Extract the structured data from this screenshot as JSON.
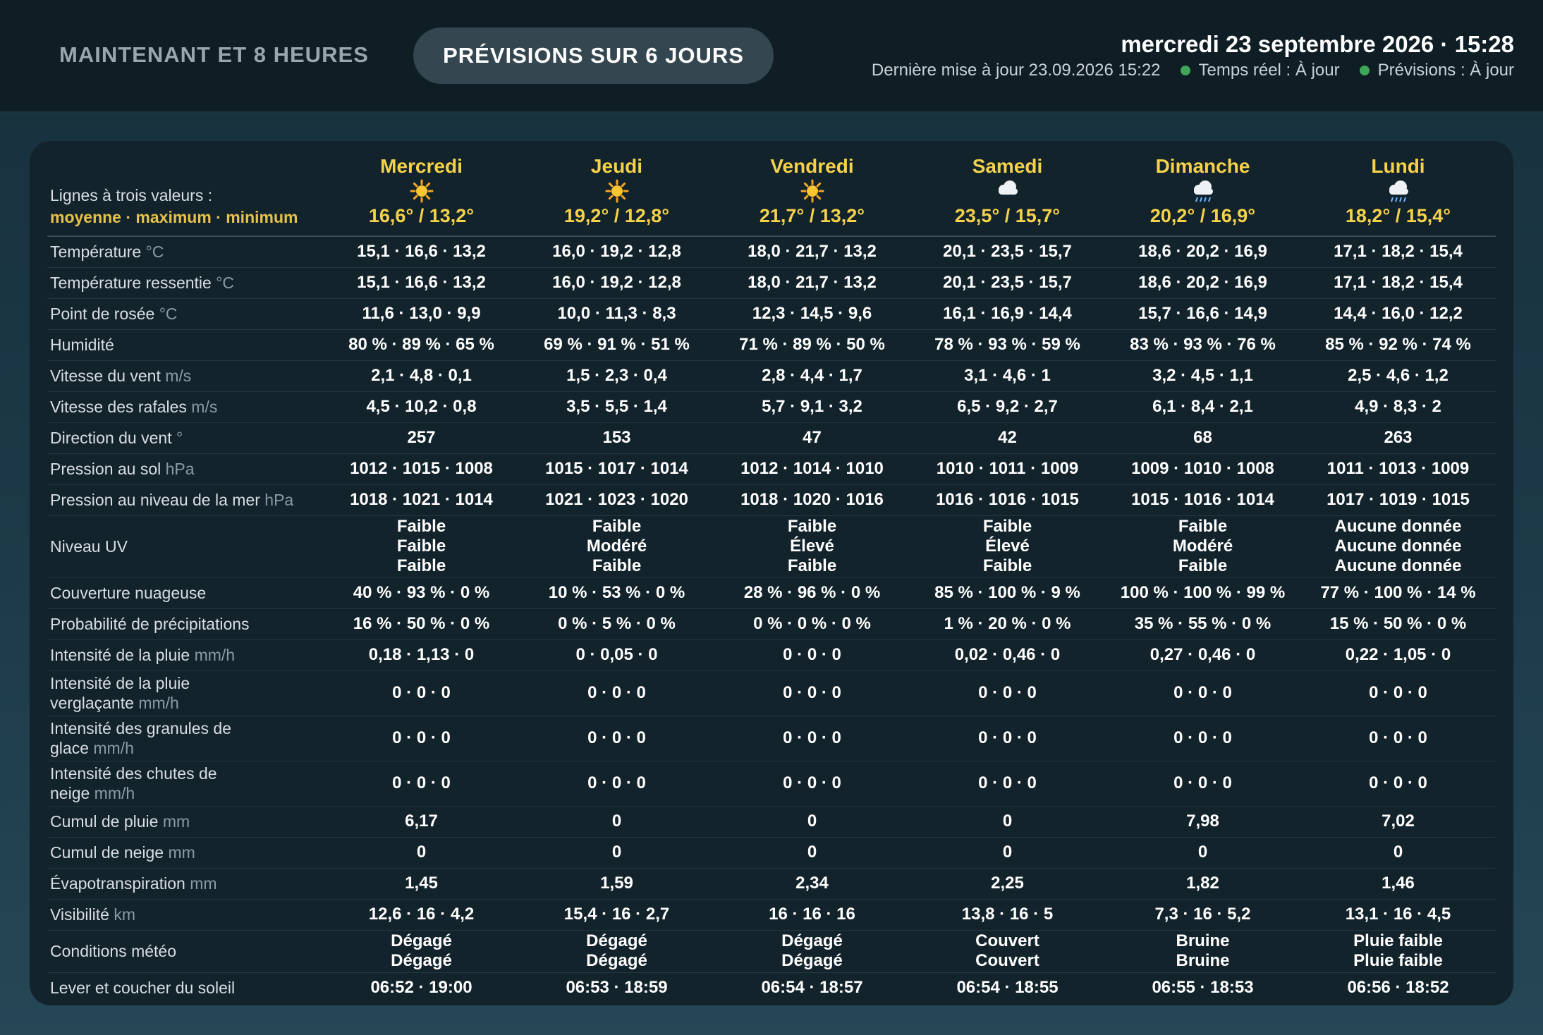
{
  "tabs": [
    "MAINTENANT ET 8 HEURES",
    "PRÉVISIONS SUR 6 JOURS"
  ],
  "header": {
    "datetime": "mercredi 23 septembre 2026 · 15:28",
    "last_update": "Dernière mise à jour 23.09.2026 15:22",
    "status": [
      "Temps réel : À jour",
      "Prévisions : À jour"
    ]
  },
  "table": {
    "legend": [
      "Lignes à trois valeurs :",
      "moyenne · maximum · minimum"
    ],
    "days": [
      {
        "name": "Mercredi",
        "icon": "sun",
        "temps": "16,6° / 13,2°"
      },
      {
        "name": "Jeudi",
        "icon": "sun",
        "temps": "19,2° / 12,8°"
      },
      {
        "name": "Vendredi",
        "icon": "sun",
        "temps": "21,7° / 13,2°"
      },
      {
        "name": "Samedi",
        "icon": "cloud",
        "temps": "23,5° / 15,7°"
      },
      {
        "name": "Dimanche",
        "icon": "rain",
        "temps": "20,2° / 16,9°"
      },
      {
        "name": "Lundi",
        "icon": "rain",
        "temps": "18,2° / 15,4°"
      }
    ],
    "rows": [
      {
        "label": [
          "Température"
        ],
        "unit": "°C",
        "cells": [
          "15,1 · 16,6 · 13,2",
          "16,0 · 19,2 · 12,8",
          "18,0 · 21,7 · 13,2",
          "20,1 · 23,5 · 15,7",
          "18,6 · 20,2 · 16,9",
          "17,1 · 18,2 · 15,4"
        ]
      },
      {
        "label": [
          "Température ressentie"
        ],
        "unit": "°C",
        "cells": [
          "15,1 · 16,6 · 13,2",
          "16,0 · 19,2 · 12,8",
          "18,0 · 21,7 · 13,2",
          "20,1 · 23,5 · 15,7",
          "18,6 · 20,2 · 16,9",
          "17,1 · 18,2 · 15,4"
        ]
      },
      {
        "label": [
          "Point de rosée"
        ],
        "unit": "°C",
        "cells": [
          "11,6 · 13,0 · 9,9",
          "10,0 · 11,3 · 8,3",
          "12,3 · 14,5 · 9,6",
          "16,1 · 16,9 · 14,4",
          "15,7 · 16,6 · 14,9",
          "14,4 · 16,0 · 12,2"
        ]
      },
      {
        "label": [
          "Humidité"
        ],
        "cells": [
          "80 % · 89 % · 65 %",
          "69 % · 91 % · 51 %",
          "71 % · 89 % · 50 %",
          "78 % · 93 % · 59 %",
          "83 % · 93 % · 76 %",
          "85 % · 92 % · 74 %"
        ]
      },
      {
        "label": [
          "Vitesse du vent"
        ],
        "unit": "m/s",
        "cells": [
          "2,1 · 4,8 · 0,1",
          "1,5 · 2,3 · 0,4",
          "2,8 · 4,4 · 1,7",
          "3,1 · 4,6 · 1",
          "3,2 · 4,5 · 1,1",
          "2,5 · 4,6 · 1,2"
        ]
      },
      {
        "label": [
          "Vitesse des rafales"
        ],
        "unit": "m/s",
        "cells": [
          "4,5 · 10,2 · 0,8",
          "3,5 · 5,5 · 1,4",
          "5,7 · 9,1 · 3,2",
          "6,5 · 9,2 · 2,7",
          "6,1 · 8,4 · 2,1",
          "4,9 · 8,3 · 2"
        ]
      },
      {
        "label": [
          "Direction du vent"
        ],
        "unit": "°",
        "cells": [
          "257",
          "153",
          "47",
          "42",
          "68",
          "263"
        ]
      },
      {
        "label": [
          "Pression au sol"
        ],
        "unit": "hPa",
        "cells": [
          "1012 · 1015 · 1008",
          "1015 · 1017 · 1014",
          "1012 · 1014 · 1010",
          "1010 · 1011 · 1009",
          "1009 · 1010 · 1008",
          "1011 · 1013 · 1009"
        ]
      },
      {
        "label": [
          "Pression au niveau de la mer"
        ],
        "unit": "hPa",
        "cells": [
          "1018 · 1021 · 1014",
          "1021 · 1023 · 1020",
          "1018 · 1020 · 1016",
          "1016 · 1016 · 1015",
          "1015 · 1016 · 1014",
          "1017 · 1019 · 1015"
        ]
      },
      {
        "label": [
          "Niveau UV"
        ],
        "cells": [
          [
            "Faible",
            "Faible",
            "Faible"
          ],
          [
            "Faible",
            "Modéré",
            "Faible"
          ],
          [
            "Faible",
            "Élevé",
            "Faible"
          ],
          [
            "Faible",
            "Élevé",
            "Faible"
          ],
          [
            "Faible",
            "Modéré",
            "Faible"
          ],
          [
            "Aucune donnée",
            "Aucune donnée",
            "Aucune donnée"
          ]
        ]
      },
      {
        "label": [
          "Couverture nuageuse"
        ],
        "cells": [
          "40 % · 93 % · 0 %",
          "10 % · 53 % · 0 %",
          "28 % · 96 % · 0 %",
          "85 % · 100 % · 9 %",
          "100 % · 100 % · 99 %",
          "77 % · 100 % · 14 %"
        ]
      },
      {
        "label": [
          "Probabilité de précipitations"
        ],
        "cells": [
          "16 % · 50 % · 0 %",
          "0 % · 5 % · 0 %",
          "0 % · 0 % · 0 %",
          "1 % · 20 % · 0 %",
          "35 % · 55 % · 0 %",
          "15 % · 50 % · 0 %"
        ]
      },
      {
        "label": [
          "Intensité de la pluie"
        ],
        "unit": "mm/h",
        "cells": [
          "0,18 · 1,13 · 0",
          "0 · 0,05 · 0",
          "0 · 0 · 0",
          "0,02 · 0,46 · 0",
          "0,27 · 0,46 · 0",
          "0,22 · 1,05 · 0"
        ]
      },
      {
        "label": [
          "Intensité de la pluie",
          "verglaçante"
        ],
        "unit": "mm/h",
        "cells": [
          "0 · 0 · 0",
          "0 · 0 · 0",
          "0 · 0 · 0",
          "0 · 0 · 0",
          "0 · 0 · 0",
          "0 · 0 · 0"
        ]
      },
      {
        "label": [
          "Intensité des granules de",
          "glace"
        ],
        "unit": "mm/h",
        "cells": [
          "0 · 0 · 0",
          "0 · 0 · 0",
          "0 · 0 · 0",
          "0 · 0 · 0",
          "0 · 0 · 0",
          "0 · 0 · 0"
        ]
      },
      {
        "label": [
          "Intensité des chutes de",
          "neige"
        ],
        "unit": "mm/h",
        "cells": [
          "0 · 0 · 0",
          "0 · 0 · 0",
          "0 · 0 · 0",
          "0 · 0 · 0",
          "0 · 0 · 0",
          "0 · 0 · 0"
        ]
      },
      {
        "label": [
          "Cumul de pluie"
        ],
        "unit": "mm",
        "cells": [
          "6,17",
          "0",
          "0",
          "0",
          "7,98",
          "7,02"
        ]
      },
      {
        "label": [
          "Cumul de neige"
        ],
        "unit": "mm",
        "cells": [
          "0",
          "0",
          "0",
          "0",
          "0",
          "0"
        ]
      },
      {
        "label": [
          "Évapotranspiration"
        ],
        "unit": "mm",
        "cells": [
          "1,45",
          "1,59",
          "2,34",
          "2,25",
          "1,82",
          "1,46"
        ]
      },
      {
        "label": [
          "Visibilité"
        ],
        "unit": "km",
        "cells": [
          "12,6 · 16 · 4,2",
          "15,4 · 16 · 2,7",
          "16 · 16 · 16",
          "13,8 · 16 · 5",
          "7,3 · 16 · 5,2",
          "13,1 · 16 · 4,5"
        ]
      },
      {
        "label": [
          "Conditions météo"
        ],
        "cells": [
          [
            "Dégagé",
            "Dégagé"
          ],
          [
            "Dégagé",
            "Dégagé"
          ],
          [
            "Dégagé",
            "Dégagé"
          ],
          [
            "Couvert",
            "Couvert"
          ],
          [
            "Bruine",
            "Bruine"
          ],
          [
            "Pluie faible",
            "Pluie faible"
          ]
        ]
      },
      {
        "label": [
          "Lever et coucher du soleil"
        ],
        "cells": [
          "06:52 · 19:00",
          "06:53 · 18:59",
          "06:54 · 18:57",
          "06:54 · 18:55",
          "06:55 · 18:53",
          "06:56 · 18:52"
        ]
      }
    ]
  }
}
